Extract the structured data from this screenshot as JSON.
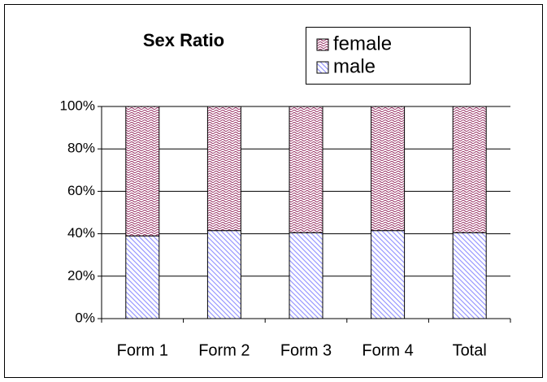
{
  "chart_data": {
    "type": "bar",
    "stacked": true,
    "title": "Sex Ratio",
    "categories": [
      "Form 1",
      "Form 2",
      "Form 3",
      "Form 4",
      "Total"
    ],
    "series": [
      {
        "name": "male",
        "color": "#9999ff",
        "values": [
          39,
          41.5,
          40.5,
          41.5,
          40.5
        ]
      },
      {
        "name": "female",
        "color": "#993366",
        "values": [
          61,
          58.5,
          59.5,
          58.5,
          59.5
        ]
      }
    ],
    "ylim": [
      0,
      100
    ],
    "yticks": [
      {
        "value": 0,
        "label": "0%"
      },
      {
        "value": 20,
        "label": "20%"
      },
      {
        "value": 40,
        "label": "40%"
      },
      {
        "value": 60,
        "label": "60%"
      },
      {
        "value": 80,
        "label": "80%"
      },
      {
        "value": 100,
        "label": "100%"
      }
    ],
    "grid": true,
    "legend": "top-right"
  }
}
